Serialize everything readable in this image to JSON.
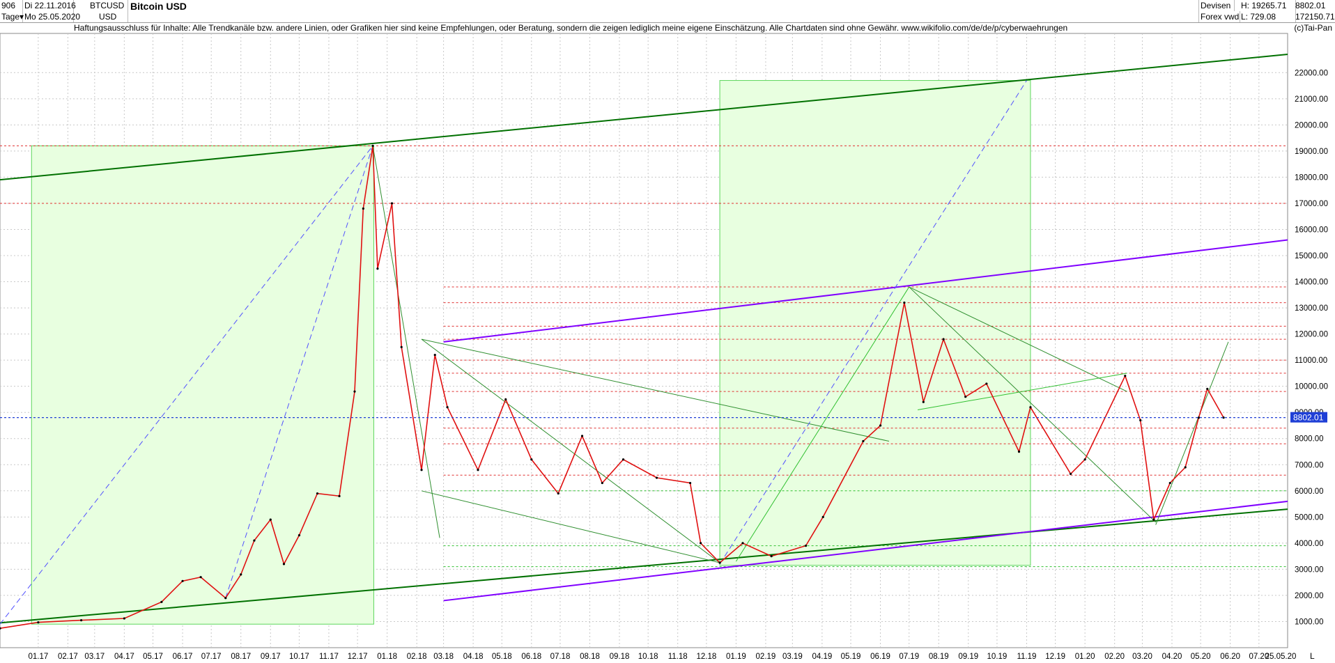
{
  "header": {
    "count": "906",
    "date_start": "Di 22.11.2016",
    "period": "Tage",
    "date_end": "Mo 25.05.2020",
    "symbol": "BTCUSD",
    "currency": "USD",
    "title": "Bitcoin USD",
    "category": "Devisen",
    "source": "Forex vwd",
    "high": "H: 19265.71",
    "low": "L: 729.08",
    "last": "8802.01",
    "volume": "172150.71"
  },
  "disclaimer": "Haftungsausschluss für Inhalte: Alle Trendkanäle bzw. andere Linien, oder Grafiken hier sind keine Empfehlungen, oder Beratung, sondern die zeigen lediglich meine eigene Einschätzung. Alle Chartdaten sind ohne Gewähr.  www.wikifolio.com/de/de/p/cyberwaehrungen",
  "copyright": "(c)Tai-Pan",
  "current_price_label": "8802.01",
  "corner_label": "L",
  "chart_data": {
    "type": "line",
    "ylim": [
      0,
      23500
    ],
    "y_ticks": [
      "1000.00",
      "2000.00",
      "3000.00",
      "4000.00",
      "5000.00",
      "6000.00",
      "7000.00",
      "8000.00",
      "9000.00",
      "10000.00",
      "11000.00",
      "12000.00",
      "13000.00",
      "14000.00",
      "15000.00",
      "16000.00",
      "17000.00",
      "18000.00",
      "19000.00",
      "20000.00",
      "21000.00",
      "22000.00"
    ],
    "x_ticks": [
      "01.17",
      "02.17",
      "03.17",
      "04.17",
      "05.17",
      "06.17",
      "07.17",
      "08.17",
      "09.17",
      "10.17",
      "11.17",
      "12.17",
      "01.18",
      "02.18",
      "03.18",
      "04.18",
      "05.18",
      "06.18",
      "07.18",
      "08.18",
      "09.18",
      "10.18",
      "11.18",
      "12.18",
      "01.19",
      "02.19",
      "03.19",
      "04.19",
      "05.19",
      "06.19",
      "07.19",
      "08.19",
      "09.19",
      "10.19",
      "11.19",
      "12.19",
      "01.20",
      "02.20",
      "03.20",
      "04.20",
      "05.20",
      "06.20",
      "07.20",
      "25.05.20"
    ],
    "x_start": "2016-11-22",
    "x_end": "2020-07-31",
    "series": [
      {
        "x": [
          "2016-11-22",
          "2017-01-01",
          "2017-02-15",
          "2017-04-01",
          "2017-05-10",
          "2017-06-01",
          "2017-06-20",
          "2017-07-16",
          "2017-08-01",
          "2017-08-15",
          "2017-09-01",
          "2017-09-15",
          "2017-10-01",
          "2017-10-20",
          "2017-11-12",
          "2017-11-28",
          "2017-12-07",
          "2017-12-17",
          "2017-12-22",
          "2018-01-06",
          "2018-01-16",
          "2018-02-06",
          "2018-02-20",
          "2018-03-05",
          "2018-04-06",
          "2018-05-05",
          "2018-06-01",
          "2018-06-29",
          "2018-07-24",
          "2018-08-14",
          "2018-09-05",
          "2018-10-10",
          "2018-11-14",
          "2018-11-25",
          "2018-12-15",
          "2019-01-08",
          "2019-02-07",
          "2019-03-15",
          "2019-04-02",
          "2019-05-14",
          "2019-06-01",
          "2019-06-26",
          "2019-07-16",
          "2019-08-06",
          "2019-08-29",
          "2019-09-20",
          "2019-10-24",
          "2019-11-05",
          "2019-12-17",
          "2020-01-01",
          "2020-02-12",
          "2020-02-28",
          "2020-03-13",
          "2020-03-30",
          "2020-04-15",
          "2020-04-29",
          "2020-05-08",
          "2020-05-25"
        ],
        "y": [
          740,
          970,
          1050,
          1120,
          1750,
          2550,
          2700,
          1900,
          2800,
          4100,
          4900,
          3200,
          4300,
          5900,
          5800,
          9800,
          16800,
          19200,
          14500,
          17000,
          11500,
          6800,
          11200,
          9200,
          6800,
          9500,
          7200,
          5900,
          8100,
          6300,
          7200,
          6500,
          6300,
          4000,
          3250,
          4000,
          3500,
          3900,
          5000,
          7900,
          8500,
          13200,
          9400,
          11800,
          9600,
          10100,
          7500,
          9200,
          6650,
          7200,
          10400,
          8700,
          4900,
          6300,
          6900,
          8800,
          9900,
          8802
        ]
      }
    ],
    "trend_lines": [
      {
        "color": "#007000",
        "from": [
          "2016-11-22",
          17900
        ],
        "to": [
          "2020-07-31",
          22700
        ]
      },
      {
        "color": "#007000",
        "from": [
          "2016-11-22",
          950
        ],
        "to": [
          "2020-07-31",
          5300
        ]
      },
      {
        "color": "#8000ff",
        "from": [
          "2018-03-01",
          11700
        ],
        "to": [
          "2020-07-31",
          15600
        ]
      },
      {
        "color": "#8000ff",
        "from": [
          "2018-03-01",
          1800
        ],
        "to": [
          "2020-07-31",
          5600
        ]
      }
    ],
    "horizontal_levels": [
      19200,
      17000,
      13800,
      13200,
      12300,
      11800,
      11000,
      10500,
      9800,
      8400,
      7800,
      6600,
      6000,
      3900,
      3100
    ],
    "current_price": 8802.01
  }
}
